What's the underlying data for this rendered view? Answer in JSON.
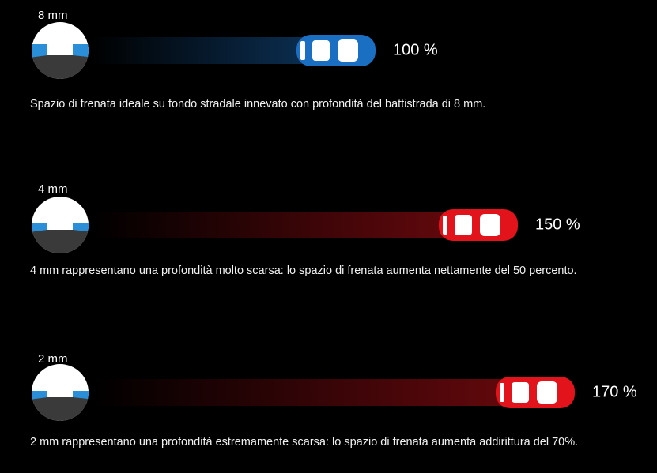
{
  "rows": [
    {
      "depth": "8 mm",
      "value": 100,
      "value_label": "100 %",
      "color": "#1b6fc2",
      "description": "Spazio di frenata ideale su fondo stradale innevato con profondità del battistrada di 8 mm."
    },
    {
      "depth": "4 mm",
      "value": 150,
      "value_label": "150 %",
      "color": "#e3131c",
      "description": "4 mm rappresentano una profondità molto scarsa: lo spazio di frenata aumenta nettamente del 50 percento."
    },
    {
      "depth": "2 mm",
      "value": 170,
      "value_label": "170 %",
      "color": "#e3131c",
      "description": "2 mm rappresentano una profondità estremamente scarsa: lo spazio di frenata aumenta addirittura del 70%."
    }
  ]
}
